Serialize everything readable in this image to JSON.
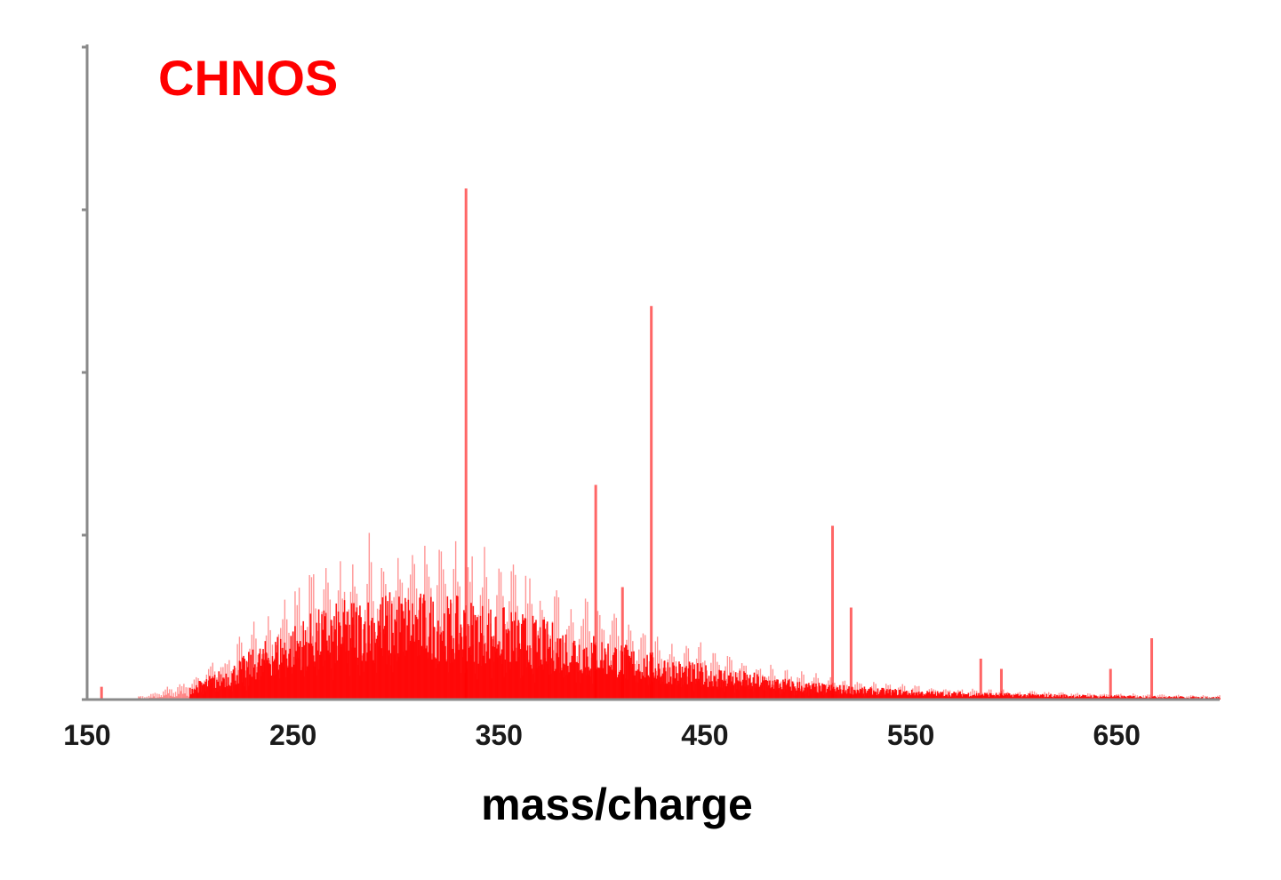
{
  "chart_data": {
    "type": "bar",
    "subtype": "mass-spectrum",
    "title": "",
    "xlabel": "mass/charge",
    "ylabel": "",
    "xlim": [
      150,
      700
    ],
    "ylim": [
      0,
      1
    ],
    "x_ticks": [
      150,
      250,
      350,
      450,
      550,
      650
    ],
    "y_ticks": [
      0,
      0.32,
      0.64,
      0.96
    ],
    "y_tick_labels_shown": false,
    "grid": false,
    "color": "#ff0000",
    "series": [
      {
        "name": "CHNOS",
        "color": "#ff0000",
        "envelope": {
          "x": [
            150,
            180,
            200,
            220,
            240,
            260,
            280,
            300,
            320,
            340,
            360,
            380,
            400,
            420,
            440,
            460,
            480,
            500,
            530,
            560,
            600,
            650,
            700
          ],
          "y": [
            0.0,
            0.01,
            0.04,
            0.1,
            0.18,
            0.25,
            0.29,
            0.31,
            0.3,
            0.28,
            0.25,
            0.21,
            0.18,
            0.14,
            0.11,
            0.09,
            0.07,
            0.05,
            0.035,
            0.025,
            0.018,
            0.012,
            0.008
          ]
        },
        "peaks": [
          {
            "x": 157,
            "y": 0.025
          },
          {
            "x": 334,
            "y": 1.0
          },
          {
            "x": 397,
            "y": 0.42
          },
          {
            "x": 410,
            "y": 0.22
          },
          {
            "x": 424,
            "y": 0.77
          },
          {
            "x": 512,
            "y": 0.34
          },
          {
            "x": 521,
            "y": 0.18
          },
          {
            "x": 584,
            "y": 0.08
          },
          {
            "x": 594,
            "y": 0.06
          },
          {
            "x": 647,
            "y": 0.06
          },
          {
            "x": 667,
            "y": 0.12
          }
        ]
      }
    ]
  }
}
